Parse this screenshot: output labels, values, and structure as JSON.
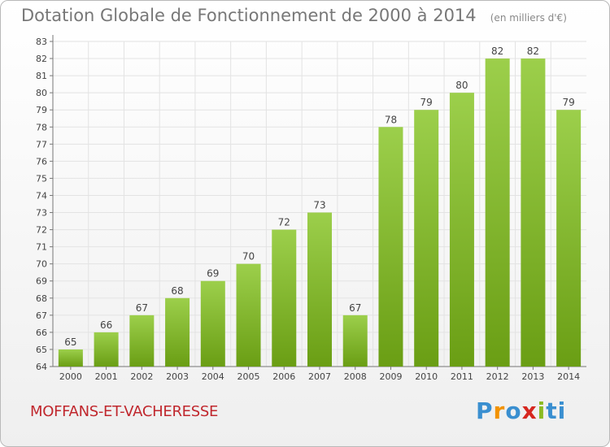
{
  "header": {
    "title": "Dotation Globale de Fonctionnement de 2000 à 2014",
    "unit": "(en milliers d'€)"
  },
  "footer": {
    "commune": "MOFFANS-ET-VACHERESSE",
    "brand": "Proxiti"
  },
  "colors": {
    "bar_top": "#9ccf4b",
    "bar_bottom": "#6a9e14",
    "grid": "#e3e3e3",
    "text": "#444444",
    "commune": "#c0272d"
  },
  "chart_data": {
    "type": "bar",
    "title": "Dotation Globale de Fonctionnement de 2000 à 2014",
    "subtitle": "(en milliers d'€)",
    "categories": [
      "2000",
      "2001",
      "2002",
      "2003",
      "2004",
      "2005",
      "2006",
      "2007",
      "2008",
      "2009",
      "2010",
      "2011",
      "2012",
      "2013",
      "2014"
    ],
    "values": [
      65,
      66,
      67,
      68,
      69,
      70,
      72,
      73,
      67,
      78,
      79,
      80,
      82,
      82,
      79
    ],
    "ylim": [
      64,
      83
    ],
    "yticks": [
      64,
      65,
      66,
      67,
      68,
      69,
      70,
      71,
      72,
      73,
      74,
      75,
      76,
      77,
      78,
      79,
      80,
      81,
      82,
      83
    ],
    "grid": true,
    "data_labels": true,
    "legend": "none"
  }
}
